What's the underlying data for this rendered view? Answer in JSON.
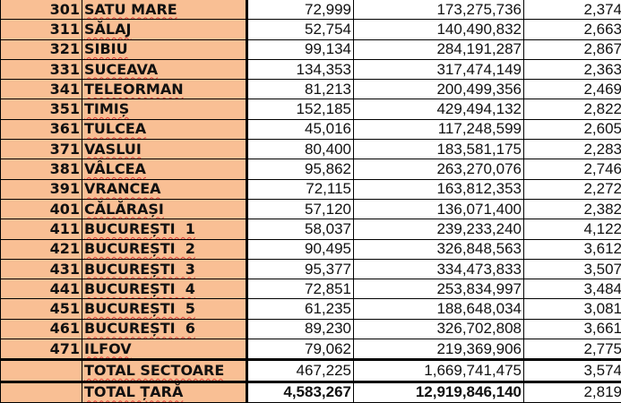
{
  "table": {
    "rows": [
      {
        "code": "301",
        "name": "SATU MARE",
        "value": "72,999",
        "total": "173,275,736",
        "avg": "2,374"
      },
      {
        "code": "311",
        "name": "SĂLAJ",
        "value": "52,754",
        "total": "140,490,832",
        "avg": "2,663"
      },
      {
        "code": "321",
        "name": "SIBIU",
        "value": "99,134",
        "total": "284,191,287",
        "avg": "2,867"
      },
      {
        "code": "331",
        "name": "SUCEAVA",
        "value": "134,353",
        "total": "317,474,149",
        "avg": "2,363"
      },
      {
        "code": "341",
        "name": "TELEORMAN",
        "value": "81,213",
        "total": "200,499,356",
        "avg": "2,469"
      },
      {
        "code": "351",
        "name": "TIMIȘ",
        "value": "152,185",
        "total": "429,494,132",
        "avg": "2,822"
      },
      {
        "code": "361",
        "name": "TULCEA",
        "value": "45,016",
        "total": "117,248,599",
        "avg": "2,605"
      },
      {
        "code": "371",
        "name": "VASLUI",
        "value": "80,400",
        "total": "183,581,175",
        "avg": "2,283"
      },
      {
        "code": "381",
        "name": "VÂLCEA",
        "value": "95,862",
        "total": "263,270,076",
        "avg": "2,746"
      },
      {
        "code": "391",
        "name": "VRANCEA",
        "value": "72,115",
        "total": "163,812,353",
        "avg": "2,272"
      },
      {
        "code": "401",
        "name": "CĂLĂRAȘI",
        "value": "57,120",
        "total": "136,071,400",
        "avg": "2,382"
      },
      {
        "code": "411",
        "name": "BUCUREȘTI  1",
        "value": "58,037",
        "total": "239,233,240",
        "avg": "4,122"
      },
      {
        "code": "421",
        "name": "BUCUREȘTI  2",
        "value": "90,495",
        "total": "326,848,563",
        "avg": "3,612"
      },
      {
        "code": "431",
        "name": "BUCUREȘTI  3",
        "value": "95,377",
        "total": "334,473,833",
        "avg": "3,507"
      },
      {
        "code": "441",
        "name": "BUCUREȘTI  4",
        "value": "72,851",
        "total": "253,834,997",
        "avg": "3,484"
      },
      {
        "code": "451",
        "name": "BUCUREȘTI  5",
        "value": "61,235",
        "total": "188,648,034",
        "avg": "3,081"
      },
      {
        "code": "461",
        "name": "BUCUREȘTI  6",
        "value": "89,230",
        "total": "326,702,808",
        "avg": "3,661"
      },
      {
        "code": "471",
        "name": "ILFOV",
        "value": "79,062",
        "total": "219,369,906",
        "avg": "2,775"
      }
    ],
    "total_sectoare": {
      "code": "",
      "name": "TOTAL SECTOARE",
      "value": "467,225",
      "total": "1,669,741,475",
      "avg": "3,574"
    },
    "total_tara": {
      "code": "",
      "name": "TOTAL ȚARĂ",
      "value": "4,583,267",
      "total": "12,919,846,140",
      "avg": "2,819"
    }
  },
  "colors": {
    "label_fill": "#f9bf94",
    "grid": "#000000",
    "spellcheck_underline": "#e0403a"
  }
}
